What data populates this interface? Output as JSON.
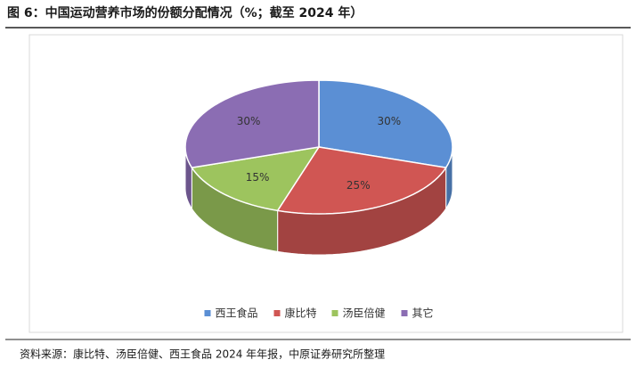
{
  "chart_data": {
    "type": "pie",
    "title": "图 6：中国运动营养市场的份额分配情况（%；截至 2024 年）",
    "categories": [
      "西王食品",
      "康比特",
      "汤臣倍健",
      "其它"
    ],
    "values": [
      30,
      25,
      15,
      30
    ],
    "value_labels": [
      "30%",
      "25%",
      "15%",
      "30%"
    ],
    "colors": [
      "#5b8fd4",
      "#d05653",
      "#9dc45e",
      "#8b6db3"
    ],
    "legend": "bottom",
    "source": "资料来源：康比特、汤臣倍健、西王食品 2024 年年报，中原证券研究所整理"
  }
}
